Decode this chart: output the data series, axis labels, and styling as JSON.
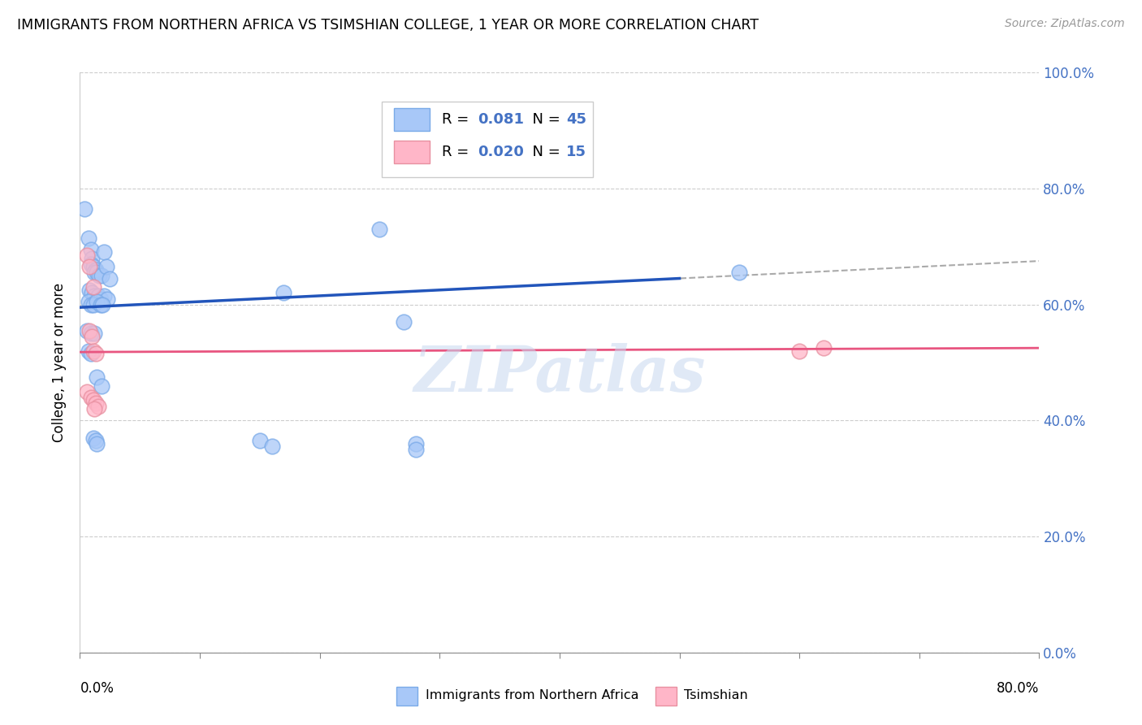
{
  "title": "IMMIGRANTS FROM NORTHERN AFRICA VS TSIMSHIAN COLLEGE, 1 YEAR OR MORE CORRELATION CHART",
  "source": "Source: ZipAtlas.com",
  "ylabel": "College, 1 year or more",
  "yaxis_values": [
    0.0,
    0.2,
    0.4,
    0.6,
    0.8,
    1.0
  ],
  "yaxis_labels": [
    "0.0%",
    "20.0%",
    "40.0%",
    "60.0%",
    "80.0%",
    "100.0%"
  ],
  "xaxis_ticks": [
    0.0,
    0.1,
    0.2,
    0.3,
    0.4,
    0.5,
    0.6,
    0.7,
    0.8
  ],
  "xlim": [
    0.0,
    0.8
  ],
  "ylim": [
    0.0,
    1.0
  ],
  "blue_R": 0.081,
  "blue_N": 45,
  "pink_R": 0.02,
  "pink_N": 15,
  "blue_color": "#A8C8F8",
  "pink_color": "#FFB6C8",
  "blue_line_color": "#2255BB",
  "pink_line_color": "#E85580",
  "dash_line_color": "#AAAAAA",
  "legend_label_blue": "Immigrants from Northern Africa",
  "legend_label_pink": "Tsimshian",
  "blue_line_x0": 0.0,
  "blue_line_y0": 0.595,
  "blue_line_x1": 0.5,
  "blue_line_y1": 0.645,
  "dash_line_x0": 0.0,
  "dash_line_y0": 0.595,
  "dash_line_x1": 0.8,
  "dash_line_y1": 0.675,
  "pink_line_x0": 0.0,
  "pink_line_y0": 0.518,
  "pink_line_x1": 0.8,
  "pink_line_y1": 0.525,
  "blue_dots": [
    [
      0.004,
      0.765
    ],
    [
      0.007,
      0.715
    ],
    [
      0.009,
      0.695
    ],
    [
      0.01,
      0.68
    ],
    [
      0.009,
      0.67
    ],
    [
      0.011,
      0.665
    ],
    [
      0.013,
      0.66
    ],
    [
      0.012,
      0.655
    ],
    [
      0.014,
      0.655
    ],
    [
      0.016,
      0.65
    ],
    [
      0.018,
      0.65
    ],
    [
      0.02,
      0.69
    ],
    [
      0.022,
      0.665
    ],
    [
      0.025,
      0.645
    ],
    [
      0.008,
      0.625
    ],
    [
      0.01,
      0.62
    ],
    [
      0.012,
      0.615
    ],
    [
      0.015,
      0.615
    ],
    [
      0.017,
      0.61
    ],
    [
      0.02,
      0.615
    ],
    [
      0.023,
      0.61
    ],
    [
      0.007,
      0.605
    ],
    [
      0.009,
      0.6
    ],
    [
      0.011,
      0.6
    ],
    [
      0.014,
      0.605
    ],
    [
      0.017,
      0.6
    ],
    [
      0.019,
      0.6
    ],
    [
      0.006,
      0.555
    ],
    [
      0.009,
      0.55
    ],
    [
      0.012,
      0.55
    ],
    [
      0.007,
      0.52
    ],
    [
      0.009,
      0.515
    ],
    [
      0.014,
      0.475
    ],
    [
      0.018,
      0.46
    ],
    [
      0.011,
      0.37
    ],
    [
      0.013,
      0.365
    ],
    [
      0.014,
      0.36
    ],
    [
      0.15,
      0.365
    ],
    [
      0.16,
      0.355
    ],
    [
      0.17,
      0.62
    ],
    [
      0.25,
      0.73
    ],
    [
      0.27,
      0.57
    ],
    [
      0.28,
      0.36
    ],
    [
      0.28,
      0.35
    ],
    [
      0.55,
      0.655
    ]
  ],
  "pink_dots": [
    [
      0.006,
      0.685
    ],
    [
      0.008,
      0.665
    ],
    [
      0.011,
      0.63
    ],
    [
      0.008,
      0.555
    ],
    [
      0.01,
      0.545
    ],
    [
      0.011,
      0.52
    ],
    [
      0.013,
      0.515
    ],
    [
      0.006,
      0.45
    ],
    [
      0.009,
      0.44
    ],
    [
      0.011,
      0.435
    ],
    [
      0.013,
      0.43
    ],
    [
      0.015,
      0.425
    ],
    [
      0.012,
      0.42
    ],
    [
      0.6,
      0.52
    ],
    [
      0.62,
      0.525
    ]
  ],
  "watermark": "ZIPatlas",
  "background_color": "#FFFFFF"
}
